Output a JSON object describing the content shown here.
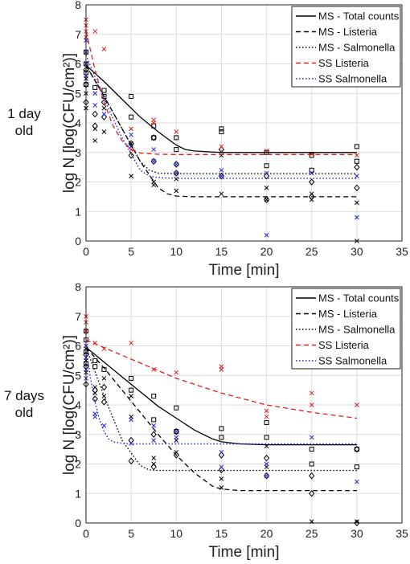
{
  "chart_data": [
    {
      "type": "line",
      "side_label": [
        "1 day",
        "old"
      ],
      "xlabel": "Time [min]",
      "ylabel": "log N [log(CFU/cm²)]",
      "xlim": [
        0,
        35
      ],
      "ylim": [
        0,
        8
      ],
      "xticks": [
        0,
        5,
        10,
        15,
        20,
        25,
        30,
        35
      ],
      "yticks": [
        0,
        1,
        2,
        3,
        4,
        5,
        6,
        7,
        8
      ],
      "grid": true,
      "legend_position": "top-right",
      "series": [
        {
          "name": "MS - Total counts",
          "style": "solid",
          "color": "#000000",
          "x": [
            0,
            2,
            4,
            6,
            8,
            10,
            11,
            12,
            15,
            20,
            25,
            30
          ],
          "y": [
            5.95,
            5.4,
            4.8,
            4.2,
            3.7,
            3.25,
            3.1,
            3.05,
            3.0,
            3.0,
            3.0,
            3.0
          ]
        },
        {
          "name": "MS - Listeria",
          "style": "dashed",
          "color": "#000000",
          "x": [
            0,
            2,
            4,
            6,
            8,
            9,
            10,
            12,
            15,
            20,
            25,
            30
          ],
          "y": [
            5.95,
            4.9,
            3.8,
            2.7,
            1.8,
            1.6,
            1.52,
            1.5,
            1.5,
            1.5,
            1.5,
            1.5
          ]
        },
        {
          "name": "MS - Salmonella",
          "style": "dotted",
          "color": "#000000",
          "x": [
            0,
            2,
            4,
            6,
            7,
            8,
            10,
            15,
            20,
            25,
            30
          ],
          "y": [
            5.95,
            4.9,
            3.8,
            2.7,
            2.4,
            2.3,
            2.28,
            2.28,
            2.28,
            2.28,
            2.28
          ]
        },
        {
          "name": "SS Listeria",
          "style": "dashed",
          "color": "#e0201b",
          "x": [
            0,
            1,
            2,
            3,
            4,
            5,
            6,
            8,
            10,
            15,
            20,
            25,
            30
          ],
          "y": [
            7.1,
            5.8,
            4.7,
            3.9,
            3.4,
            3.1,
            2.98,
            2.94,
            2.93,
            2.93,
            2.93,
            2.93,
            2.93
          ]
        },
        {
          "name": "SS Salmonella",
          "style": "dotted",
          "color": "#2222dd",
          "x": [
            0,
            2,
            4,
            6,
            7,
            8,
            10,
            15,
            20,
            25,
            30
          ],
          "y": [
            6.3,
            4.8,
            3.5,
            2.4,
            2.2,
            2.15,
            2.12,
            2.12,
            2.12,
            2.12,
            2.12
          ]
        }
      ],
      "scatter": [
        {
          "name": "MS - Total counts",
          "marker": "square",
          "color": "#000000",
          "x": [
            0,
            0,
            0,
            0,
            1,
            2,
            2,
            5,
            5,
            7.5,
            7.5,
            10,
            10,
            15,
            15,
            20,
            20,
            25,
            25,
            30,
            30
          ],
          "y": [
            6.4,
            6.0,
            5.7,
            5.3,
            5.2,
            5.1,
            4.9,
            4.9,
            4.2,
            3.9,
            3.5,
            3.5,
            3.1,
            3.8,
            3.7,
            3.0,
            2.55,
            2.9,
            2.4,
            3.2,
            2.7
          ]
        },
        {
          "name": "MS - Listeria",
          "marker": "x",
          "color": "#000000",
          "x": [
            0,
            0,
            0,
            1,
            1,
            2,
            2,
            5,
            5,
            7.5,
            7.5,
            10,
            10,
            15,
            15,
            20,
            20,
            25,
            25,
            30,
            30
          ],
          "y": [
            5.5,
            5.0,
            4.5,
            3.8,
            3.4,
            4.5,
            3.7,
            3.3,
            2.2,
            2.0,
            1.9,
            2.1,
            1.7,
            2.9,
            1.6,
            1.8,
            1.4,
            1.6,
            1.4,
            1.3,
            0.0
          ]
        },
        {
          "name": "MS - Salmonella",
          "marker": "diamond",
          "color": "#000000",
          "x": [
            0,
            0,
            0,
            1,
            1,
            2,
            2,
            5,
            5,
            7.5,
            7.5,
            10,
            10,
            15,
            15,
            20,
            20,
            25,
            25,
            30,
            30
          ],
          "y": [
            5.8,
            5.3,
            4.7,
            4.3,
            3.9,
            4.7,
            4.2,
            3.3,
            2.9,
            3.5,
            2.7,
            2.6,
            2.3,
            3.1,
            2.2,
            2.2,
            1.4,
            2.0,
            1.5,
            2.5,
            1.8
          ]
        },
        {
          "name": "SS Listeria",
          "marker": "x",
          "color": "#e0201b",
          "x": [
            0,
            0,
            0,
            0,
            1,
            2,
            5,
            5,
            7.5,
            7.5,
            10,
            15,
            20,
            25,
            30
          ],
          "y": [
            7.5,
            7.3,
            7.1,
            6.9,
            7.1,
            6.5,
            3.8,
            3.1,
            4.1,
            4.0,
            3.7,
            3.2,
            3.05,
            2.95,
            2.9
          ]
        },
        {
          "name": "SS Salmonella",
          "marker": "x",
          "color": "#2222dd",
          "x": [
            0,
            0,
            0,
            0,
            1,
            1,
            2,
            5,
            5,
            7.5,
            7.5,
            10,
            10,
            15,
            15,
            20,
            20,
            25,
            30,
            30
          ],
          "y": [
            6.8,
            6.4,
            6.0,
            5.6,
            5.0,
            4.6,
            4.3,
            3.6,
            3.2,
            3.1,
            2.7,
            2.6,
            2.3,
            2.4,
            2.2,
            2.3,
            0.2,
            2.3,
            2.2,
            0.8
          ]
        }
      ]
    },
    {
      "type": "line",
      "side_label": [
        "7 days",
        "old"
      ],
      "xlabel": "Time [min]",
      "ylabel": "log N [log(CFU/cm²)]",
      "xlim": [
        0,
        35
      ],
      "ylim": [
        0,
        8
      ],
      "xticks": [
        0,
        5,
        10,
        15,
        20,
        25,
        30,
        35
      ],
      "yticks": [
        0,
        1,
        2,
        3,
        4,
        5,
        6,
        7,
        8
      ],
      "grid": true,
      "legend_position": "top-right",
      "series": [
        {
          "name": "MS - Total counts",
          "style": "solid",
          "color": "#000000",
          "x": [
            0,
            2,
            4,
            6,
            8,
            10,
            12,
            14,
            15,
            17,
            20,
            25,
            30
          ],
          "y": [
            5.95,
            5.45,
            4.95,
            4.45,
            3.95,
            3.55,
            3.15,
            2.85,
            2.75,
            2.68,
            2.65,
            2.65,
            2.65
          ]
        },
        {
          "name": "MS - Listeria",
          "style": "dashed",
          "color": "#000000",
          "x": [
            0,
            2,
            4,
            6,
            8,
            10,
            12,
            14,
            15,
            17,
            20,
            25,
            30
          ],
          "y": [
            5.95,
            5.25,
            4.5,
            3.75,
            3.0,
            2.3,
            1.7,
            1.25,
            1.15,
            1.1,
            1.1,
            1.1,
            1.1
          ]
        },
        {
          "name": "MS - Salmonella",
          "style": "dotted",
          "color": "#000000",
          "x": [
            0,
            2,
            4,
            6,
            7,
            8,
            10,
            15,
            20,
            25,
            30
          ],
          "y": [
            5.95,
            4.3,
            2.8,
            1.95,
            1.8,
            1.78,
            1.78,
            1.78,
            1.78,
            1.78,
            1.78
          ]
        },
        {
          "name": "SS Listeria",
          "style": "dashed",
          "color": "#e0201b",
          "x": [
            0,
            5,
            10,
            15,
            20,
            25,
            30
          ],
          "y": [
            6.2,
            5.55,
            4.9,
            4.4,
            4.0,
            3.75,
            3.55
          ]
        },
        {
          "name": "SS Salmonella",
          "style": "dotted",
          "color": "#2222dd",
          "x": [
            0,
            0.5,
            1,
            1.5,
            2,
            2.5,
            3,
            4,
            5,
            10,
            15,
            20,
            25,
            30
          ],
          "y": [
            5.9,
            4.9,
            4.1,
            3.5,
            3.1,
            2.85,
            2.75,
            2.7,
            2.68,
            2.68,
            2.68,
            2.68,
            2.68,
            2.68
          ]
        }
      ],
      "scatter": [
        {
          "name": "MS - Total counts",
          "marker": "square",
          "color": "#000000",
          "x": [
            0,
            0,
            0,
            0,
            1,
            1,
            2,
            5,
            5,
            7.5,
            7.5,
            10,
            10,
            15,
            15,
            20,
            20,
            25,
            25,
            30,
            30
          ],
          "y": [
            6.5,
            6.2,
            5.8,
            5.4,
            5.5,
            5.3,
            5.2,
            4.9,
            4.5,
            4.3,
            3.5,
            3.9,
            3.1,
            3.2,
            2.9,
            3.4,
            2.9,
            2.5,
            2.0,
            2.5,
            1.9
          ]
        },
        {
          "name": "MS - Listeria",
          "marker": "x",
          "color": "#000000",
          "x": [
            0,
            0,
            0,
            1,
            1,
            2,
            2,
            5,
            5,
            7.5,
            7.5,
            10,
            10,
            15,
            15,
            20,
            20,
            25,
            30
          ],
          "y": [
            5.9,
            5.5,
            5.1,
            4.6,
            4.4,
            4.9,
            4.3,
            4.3,
            3.6,
            2.2,
            2.0,
            2.8,
            2.4,
            1.5,
            1.2,
            2.6,
            1.9,
            0.05,
            0.05
          ]
        },
        {
          "name": "MS - Salmonella",
          "marker": "diamond",
          "color": "#000000",
          "x": [
            0,
            0,
            0,
            1,
            1,
            2,
            2,
            5,
            5,
            7.5,
            7.5,
            10,
            10,
            15,
            15,
            20,
            20,
            25,
            25,
            30,
            30
          ],
          "y": [
            5.7,
            5.3,
            4.7,
            4.5,
            4.2,
            4.6,
            4.1,
            2.8,
            2.1,
            3.0,
            1.9,
            3.1,
            2.3,
            2.3,
            1.8,
            2.2,
            1.6,
            1.6,
            1.0,
            2.5,
            0.0
          ]
        },
        {
          "name": "SS Listeria",
          "marker": "x",
          "color": "#e0201b",
          "x": [
            0,
            0,
            0,
            1,
            2,
            5,
            7.5,
            10,
            15,
            15,
            20,
            20,
            25,
            25,
            30
          ],
          "y": [
            7.0,
            6.8,
            6.5,
            6.1,
            5.9,
            6.1,
            5.2,
            5.1,
            5.3,
            5.2,
            3.8,
            3.6,
            4.4,
            4.0,
            4.0
          ]
        },
        {
          "name": "SS Salmonella",
          "marker": "x",
          "color": "#2222dd",
          "x": [
            0,
            0,
            0,
            0,
            1,
            1,
            2,
            5,
            5,
            7.5,
            7.5,
            10,
            10,
            15,
            15,
            20,
            20,
            25,
            30
          ],
          "y": [
            6.0,
            5.6,
            5.2,
            4.9,
            3.7,
            3.6,
            3.3,
            3.5,
            2.7,
            3.3,
            2.8,
            3.1,
            2.9,
            2.4,
            1.9,
            2.0,
            1.6,
            2.9,
            1.4
          ]
        }
      ]
    }
  ]
}
